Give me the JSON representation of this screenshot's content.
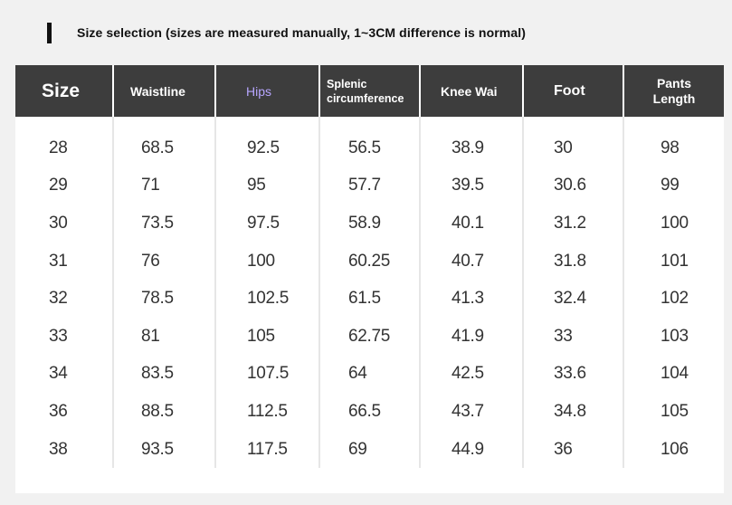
{
  "title": "Size selection (sizes are measured manually, 1~3CM difference is normal)",
  "colors": {
    "header_bg": "#3d3d3d",
    "header_text": "#ffffff",
    "hips_header_text": "#b7a6ff",
    "page_bg": "#f1f1f1",
    "body_text": "#333333"
  },
  "table": {
    "headers": {
      "size": "Size",
      "waistline": "Waistline",
      "hips": "Hips",
      "splenic_line1": "Splenic",
      "splenic_line2": "circumference",
      "knee": "Knee Wai",
      "foot": "Foot",
      "pants_line1": "Pants",
      "pants_line2": "Length"
    },
    "rows": [
      {
        "size": "28",
        "waistline": "68.5",
        "hips": "92.5",
        "splenic": "56.5",
        "knee": "38.9",
        "foot": "30",
        "pants": "98"
      },
      {
        "size": "29",
        "waistline": "71",
        "hips": "95",
        "splenic": "57.7",
        "knee": "39.5",
        "foot": "30.6",
        "pants": "99"
      },
      {
        "size": "30",
        "waistline": "73.5",
        "hips": "97.5",
        "splenic": "58.9",
        "knee": "40.1",
        "foot": "31.2",
        "pants": "100"
      },
      {
        "size": "31",
        "waistline": "76",
        "hips": "100",
        "splenic": "60.25",
        "knee": "40.7",
        "foot": "31.8",
        "pants": "101"
      },
      {
        "size": "32",
        "waistline": "78.5",
        "hips": "102.5",
        "splenic": "61.5",
        "knee": "41.3",
        "foot": "32.4",
        "pants": "102"
      },
      {
        "size": "33",
        "waistline": "81",
        "hips": "105",
        "splenic": "62.75",
        "knee": "41.9",
        "foot": "33",
        "pants": "103"
      },
      {
        "size": "34",
        "waistline": "83.5",
        "hips": "107.5",
        "splenic": "64",
        "knee": "42.5",
        "foot": "33.6",
        "pants": "104"
      },
      {
        "size": "36",
        "waistline": "88.5",
        "hips": "112.5",
        "splenic": "66.5",
        "knee": "43.7",
        "foot": "34.8",
        "pants": "105"
      },
      {
        "size": "38",
        "waistline": "93.5",
        "hips": "117.5",
        "splenic": "69",
        "knee": "44.9",
        "foot": "36",
        "pants": "106"
      }
    ]
  }
}
